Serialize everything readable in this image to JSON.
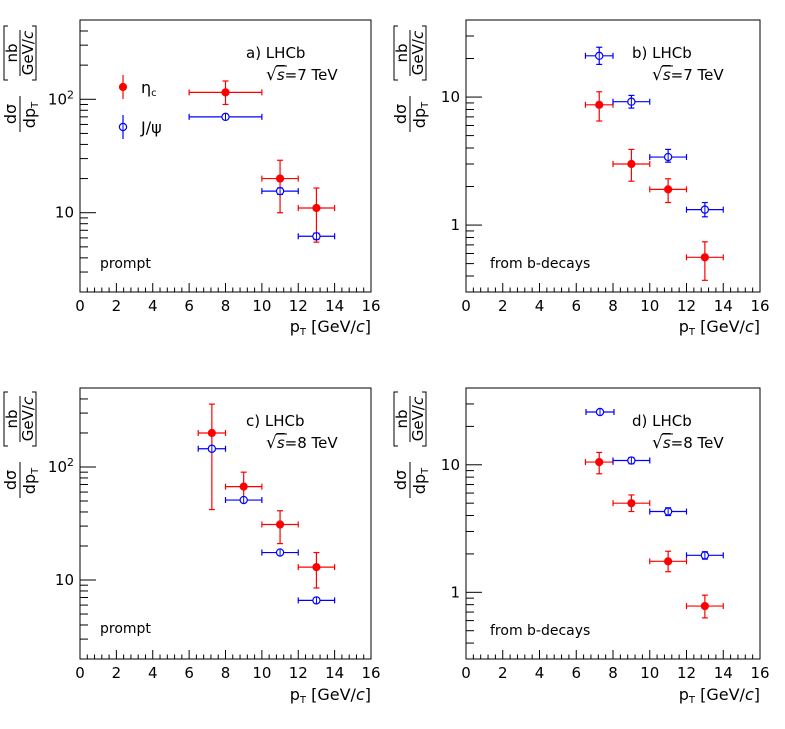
{
  "figure": {
    "x_axis_title": "p",
    "x_axis_sub": "T",
    "x_axis_unit_open": "[GeV/",
    "x_axis_unit_c": "c",
    "x_axis_unit_close": "]",
    "y_axis_num": "dσ",
    "y_axis_den": "dp",
    "y_axis_den_sub": "T",
    "y_axis_unit_num": "nb",
    "y_axis_unit_den": "GeV/",
    "y_axis_unit_c": "c"
  },
  "legend": {
    "eta_label": "η",
    "eta_sub": "c",
    "jpsi_label": "J/ψ"
  },
  "colors": {
    "eta": "#ff0000",
    "jpsi": "#0000ff",
    "axis": "#000000"
  },
  "chart_data": [
    {
      "type": "scatter",
      "id": "a",
      "title": "a) LHCb",
      "energy_label": "=7 TeV",
      "sqrt_label": "√",
      "s_label": "s",
      "annotation": "prompt",
      "xlim": [
        0,
        16
      ],
      "ylim": [
        2,
        500
      ],
      "yscale": "log",
      "xticks": [
        0,
        2,
        4,
        6,
        8,
        10,
        12,
        14,
        16
      ],
      "yticks": [
        {
          "value": 10,
          "label": "10"
        },
        {
          "value": 100,
          "label": "10",
          "sup": "2"
        }
      ],
      "legend": true,
      "series": [
        {
          "name": "η_c",
          "marker": "filled",
          "color": "#ff0000",
          "points": [
            {
              "x": 8,
              "xerr": 2,
              "y": 115,
              "ylo": 90,
              "yhi": 145
            },
            {
              "x": 11,
              "xerr": 1,
              "y": 20,
              "ylo": 10,
              "yhi": 29
            },
            {
              "x": 13,
              "xerr": 1,
              "y": 11,
              "ylo": 5.5,
              "yhi": 16.5
            }
          ]
        },
        {
          "name": "J/ψ",
          "marker": "open",
          "color": "#0000ff",
          "points": [
            {
              "x": 8,
              "xerr": 2,
              "y": 70,
              "ylo": 68,
              "yhi": 72
            },
            {
              "x": 11,
              "xerr": 1,
              "y": 15.5,
              "ylo": 14.5,
              "yhi": 16.5
            },
            {
              "x": 13,
              "xerr": 1,
              "y": 6.2,
              "ylo": 5.8,
              "yhi": 6.6
            }
          ]
        }
      ]
    },
    {
      "type": "scatter",
      "id": "b",
      "title": "b) LHCb",
      "energy_label": "=7 TeV",
      "sqrt_label": "√",
      "s_label": "s",
      "annotation": "from b-decays",
      "xlim": [
        0,
        16
      ],
      "ylim": [
        0.3,
        40
      ],
      "yscale": "log",
      "xticks": [
        0,
        2,
        4,
        6,
        8,
        10,
        12,
        14,
        16
      ],
      "yticks": [
        {
          "value": 1,
          "label": "1"
        },
        {
          "value": 10,
          "label": "10"
        }
      ],
      "legend": false,
      "series": [
        {
          "name": "η_c",
          "marker": "filled",
          "color": "#ff0000",
          "points": [
            {
              "x": 7.25,
              "xerr": 0.75,
              "y": 8.7,
              "ylo": 6.5,
              "yhi": 11
            },
            {
              "x": 9,
              "xerr": 1,
              "y": 3,
              "ylo": 2.2,
              "yhi": 3.9
            },
            {
              "x": 11,
              "xerr": 1,
              "y": 1.9,
              "ylo": 1.5,
              "yhi": 2.3
            },
            {
              "x": 13,
              "xerr": 1,
              "y": 0.56,
              "ylo": 0.37,
              "yhi": 0.74
            }
          ]
        },
        {
          "name": "J/ψ",
          "marker": "open",
          "color": "#0000ff",
          "points": [
            {
              "x": 7.25,
              "xerr": 0.75,
              "y": 21,
              "ylo": 18,
              "yhi": 24.5
            },
            {
              "x": 9,
              "xerr": 1,
              "y": 9.2,
              "ylo": 8.2,
              "yhi": 10.3
            },
            {
              "x": 11,
              "xerr": 1,
              "y": 3.4,
              "ylo": 3.1,
              "yhi": 3.9
            },
            {
              "x": 13,
              "xerr": 1,
              "y": 1.32,
              "ylo": 1.16,
              "yhi": 1.5
            }
          ]
        }
      ]
    },
    {
      "type": "scatter",
      "id": "c",
      "title": "c) LHCb",
      "energy_label": "=8 TeV",
      "sqrt_label": "√",
      "s_label": "s",
      "annotation": "prompt",
      "xlim": [
        0,
        16
      ],
      "ylim": [
        2,
        500
      ],
      "yscale": "log",
      "xticks": [
        0,
        2,
        4,
        6,
        8,
        10,
        12,
        14,
        16
      ],
      "yticks": [
        {
          "value": 10,
          "label": "10"
        },
        {
          "value": 100,
          "label": "10",
          "sup": "2"
        }
      ],
      "legend": false,
      "series": [
        {
          "name": "η_c",
          "marker": "filled",
          "color": "#ff0000",
          "points": [
            {
              "x": 7.25,
              "xerr": 0.75,
              "y": 200,
              "ylo": 42,
              "yhi": 360
            },
            {
              "x": 9,
              "xerr": 1,
              "y": 67,
              "ylo": 50,
              "yhi": 90
            },
            {
              "x": 11,
              "xerr": 1,
              "y": 31,
              "ylo": 21,
              "yhi": 41
            },
            {
              "x": 13,
              "xerr": 1,
              "y": 13,
              "ylo": 8.5,
              "yhi": 17.5
            }
          ]
        },
        {
          "name": "J/ψ",
          "marker": "open",
          "color": "#0000ff",
          "points": [
            {
              "x": 7.25,
              "xerr": 0.75,
              "y": 145,
              "ylo": 138,
              "yhi": 152
            },
            {
              "x": 9,
              "xerr": 1,
              "y": 51,
              "ylo": 49,
              "yhi": 53
            },
            {
              "x": 11,
              "xerr": 1,
              "y": 17.5,
              "ylo": 16.7,
              "yhi": 18.3
            },
            {
              "x": 13,
              "xerr": 1,
              "y": 6.6,
              "ylo": 6.3,
              "yhi": 6.9
            }
          ]
        }
      ]
    },
    {
      "type": "scatter",
      "id": "d",
      "title": "d) LHCb",
      "energy_label": "=8 TeV",
      "sqrt_label": "√",
      "s_label": "s",
      "annotation": "from b-decays",
      "xlim": [
        0,
        16
      ],
      "ylim": [
        0.3,
        40
      ],
      "yscale": "log",
      "xticks": [
        0,
        2,
        4,
        6,
        8,
        10,
        12,
        14,
        16
      ],
      "yticks": [
        {
          "value": 1,
          "label": "1"
        },
        {
          "value": 10,
          "label": "10"
        }
      ],
      "legend": false,
      "legend_marker_only": "J/ψ",
      "series": [
        {
          "name": "η_c",
          "marker": "filled",
          "color": "#ff0000",
          "points": [
            {
              "x": 7.25,
              "xerr": 0.75,
              "y": 10.5,
              "ylo": 8.5,
              "yhi": 12.5
            },
            {
              "x": 9,
              "xerr": 1,
              "y": 5,
              "ylo": 4.3,
              "yhi": 5.8
            },
            {
              "x": 11,
              "xerr": 1,
              "y": 1.75,
              "ylo": 1.45,
              "yhi": 2.1
            },
            {
              "x": 13,
              "xerr": 1,
              "y": 0.78,
              "ylo": 0.63,
              "yhi": 0.95
            }
          ]
        },
        {
          "name": "J/ψ",
          "marker": "open",
          "color": "#0000ff",
          "points": [
            {
              "x": 9,
              "xerr": 1,
              "y": 10.8,
              "ylo": 10.2,
              "yhi": 11.4
            },
            {
              "x": 11,
              "xerr": 1,
              "y": 4.3,
              "ylo": 4.0,
              "yhi": 4.6
            },
            {
              "x": 13,
              "xerr": 1,
              "y": 1.95,
              "ylo": 1.82,
              "yhi": 2.08
            }
          ]
        }
      ]
    }
  ]
}
